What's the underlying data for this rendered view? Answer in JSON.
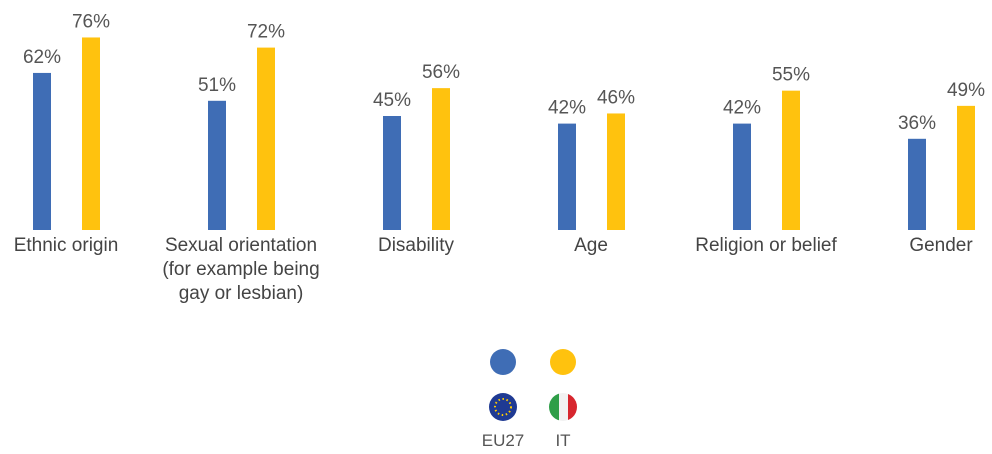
{
  "chart_data": {
    "type": "bar",
    "categories": [
      "Ethnic origin",
      "Sexual orientation (for example being gay or lesbian)",
      "Disability",
      "Age",
      "Religion or belief",
      "Gender"
    ],
    "series": [
      {
        "name": "EU27",
        "color": "#3f6db5",
        "values": [
          62,
          51,
          45,
          42,
          42,
          36
        ],
        "value_labels": [
          "62%",
          "51%",
          "45%",
          "42%",
          "42%",
          "36%"
        ]
      },
      {
        "name": "IT",
        "color": "#ffc20e",
        "values": [
          76,
          72,
          56,
          46,
          55,
          49
        ],
        "value_labels": [
          "76%",
          "72%",
          "56%",
          "46%",
          "55%",
          "49%"
        ]
      }
    ],
    "ylim": [
      0,
      90
    ]
  }
}
